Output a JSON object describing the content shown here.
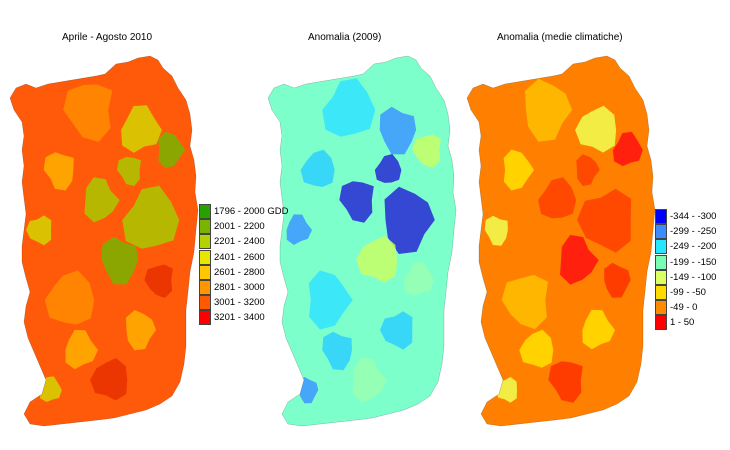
{
  "maps": [
    {
      "title": "Aprile - Agosto 2010",
      "base_color": "#ff5a0a",
      "patch_colors": [
        "#ff8c00",
        "#ffb000",
        "#d4d400",
        "#a8c800",
        "#78b400",
        "#e83000"
      ]
    },
    {
      "title": "Anomalia (2009)",
      "base_color": "#7dffcc",
      "patch_colors": [
        "#30e4ff",
        "#2cd0ff",
        "#3c96ff",
        "#2828d4",
        "#c8ff64",
        "#98ffb0"
      ]
    },
    {
      "title": "Anomalia (medie climatiche)",
      "base_color": "#ff8000",
      "patch_colors": [
        "#ffc000",
        "#ffe000",
        "#f0ff50",
        "#ff4000",
        "#ff1010",
        "#ff3000"
      ]
    }
  ],
  "legend_gdd": {
    "items": [
      {
        "label": "1796 - 2000 GDD",
        "color": "#28a000"
      },
      {
        "label": "2001 - 2200",
        "color": "#78b400"
      },
      {
        "label": "2201 - 2400",
        "color": "#b4d200"
      },
      {
        "label": "2401 - 2600",
        "color": "#e6e600"
      },
      {
        "label": "2601 - 2800",
        "color": "#ffc800"
      },
      {
        "label": "2801 - 3000",
        "color": "#ff9600"
      },
      {
        "label": "3001 - 3200",
        "color": "#ff5a00"
      },
      {
        "label": "3201 - 3400",
        "color": "#ff0000"
      }
    ]
  },
  "legend_anomaly": {
    "items": [
      {
        "label": "-344 - -300",
        "color": "#0000ff"
      },
      {
        "label": "-299 - -250",
        "color": "#3c8cff"
      },
      {
        "label": "-249 - -200",
        "color": "#28e6ff"
      },
      {
        "label": "-199 - -150",
        "color": "#78ffb4"
      },
      {
        "label": "-149 - -100",
        "color": "#dcff64"
      },
      {
        "label": "-99 - -50",
        "color": "#ffdc00"
      },
      {
        "label": "-49 - 0",
        "color": "#ff8c00"
      },
      {
        "label": "1 - 50",
        "color": "#ff0000"
      }
    ]
  }
}
